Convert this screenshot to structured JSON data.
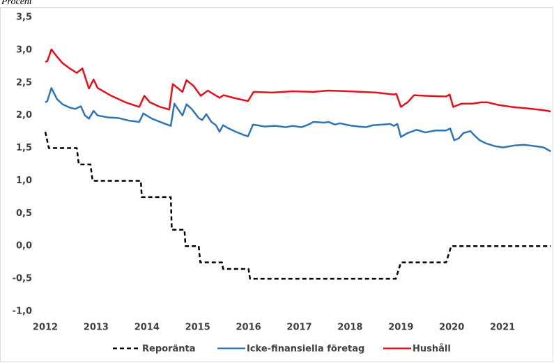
{
  "chart_data": {
    "type": "line",
    "title": "Procent",
    "xlim": [
      2012,
      2022
    ],
    "xticks": [
      2012,
      2013,
      2014,
      2015,
      2016,
      2017,
      2018,
      2019,
      2020,
      2021
    ],
    "ylim": [
      -1.0,
      3.5
    ],
    "yticks": [
      {
        "value": -1.0,
        "label": "-1,0"
      },
      {
        "value": -0.5,
        "label": "-0,5"
      },
      {
        "value": 0,
        "label": "0,0"
      },
      {
        "value": 0.5,
        "label": "0,5"
      },
      {
        "value": 1.0,
        "label": "1,0"
      },
      {
        "value": 1.5,
        "label": "1,5"
      },
      {
        "value": 2.0,
        "label": "2,0"
      },
      {
        "value": 2.5,
        "label": "2,5"
      },
      {
        "value": 3.0,
        "label": "3,0"
      },
      {
        "value": 3.5,
        "label": "3,5"
      }
    ],
    "grid": false,
    "legend": "bottom",
    "series": [
      {
        "name": "Reporänta",
        "color": "#000000",
        "dashed": true,
        "x": [
          2012,
          2012.07,
          2012.62,
          2012.66,
          2012.89,
          2012.93,
          2013.88,
          2013.9,
          2014.47,
          2014.49,
          2014.74,
          2014.76,
          2015.02,
          2015.05,
          2015.48,
          2015.5,
          2016.0,
          2016.03,
          2018.9,
          2019.0,
          2019.89,
          2019.99,
          2021.95
        ],
        "values": [
          1.75,
          1.5,
          1.5,
          1.25,
          1.25,
          1.0,
          1.0,
          0.75,
          0.75,
          0.25,
          0.25,
          0,
          0,
          -0.25,
          -0.25,
          -0.35,
          -0.35,
          -0.5,
          -0.5,
          -0.25,
          -0.25,
          0,
          0
        ]
      },
      {
        "name": "Icke-finansiella företag",
        "color": "#2e75b6",
        "x": [
          2012,
          2012.04,
          2012.12,
          2012.23,
          2012.34,
          2012.48,
          2012.59,
          2012.7,
          2012.78,
          2012.86,
          2012.95,
          2013.03,
          2013.23,
          2013.44,
          2013.65,
          2013.85,
          2013.93,
          2014.1,
          2014.33,
          2014.47,
          2014.54,
          2014.61,
          2014.7,
          2014.78,
          2014.88,
          2015.02,
          2015.09,
          2015.17,
          2015.27,
          2015.36,
          2015.43,
          2015.5,
          2015.61,
          2015.75,
          2015.91,
          2015.99,
          2016.09,
          2016.32,
          2016.53,
          2016.73,
          2016.87,
          2017.04,
          2017.15,
          2017.28,
          2017.49,
          2017.58,
          2017.7,
          2017.8,
          2017.97,
          2018.17,
          2018.31,
          2018.45,
          2018.65,
          2018.79,
          2018.86,
          2018.93,
          2019.0,
          2019.13,
          2019.31,
          2019.48,
          2019.68,
          2019.89,
          2019.97,
          2020.05,
          2020.14,
          2020.23,
          2020.37,
          2020.44,
          2020.55,
          2020.68,
          2020.85,
          2021.01,
          2021.23,
          2021.43,
          2021.64,
          2021.81,
          2021.95
        ],
        "values": [
          2.2,
          2.22,
          2.42,
          2.25,
          2.17,
          2.12,
          2.1,
          2.14,
          2.0,
          1.95,
          2.07,
          2.0,
          1.97,
          1.96,
          1.92,
          1.9,
          2.03,
          1.95,
          1.88,
          1.84,
          2.18,
          2.1,
          2.0,
          2.17,
          2.1,
          1.96,
          1.93,
          2.02,
          1.9,
          1.85,
          1.75,
          1.85,
          1.8,
          1.75,
          1.7,
          1.68,
          1.86,
          1.83,
          1.84,
          1.82,
          1.84,
          1.82,
          1.85,
          1.9,
          1.89,
          1.9,
          1.86,
          1.88,
          1.85,
          1.83,
          1.82,
          1.85,
          1.86,
          1.87,
          1.84,
          1.87,
          1.67,
          1.73,
          1.78,
          1.74,
          1.77,
          1.77,
          1.8,
          1.62,
          1.65,
          1.73,
          1.76,
          1.7,
          1.62,
          1.57,
          1.53,
          1.51,
          1.54,
          1.55,
          1.53,
          1.51,
          1.45
        ]
      },
      {
        "name": "Hushåll",
        "color": "#e3101b",
        "x": [
          2012,
          2012.04,
          2012.12,
          2012.23,
          2012.34,
          2012.48,
          2012.62,
          2012.73,
          2012.86,
          2012.95,
          2013.03,
          2013.3,
          2013.58,
          2013.85,
          2013.95,
          2014.06,
          2014.26,
          2014.44,
          2014.51,
          2014.7,
          2014.78,
          2014.92,
          2015.06,
          2015.2,
          2015.43,
          2015.51,
          2015.7,
          2015.99,
          2016.1,
          2016.46,
          2016.87,
          2017.28,
          2017.56,
          2017.97,
          2018.52,
          2018.86,
          2018.91,
          2019.0,
          2019.13,
          2019.26,
          2019.48,
          2019.89,
          2019.96,
          2020.03,
          2020.19,
          2020.41,
          2020.58,
          2020.71,
          2020.92,
          2021.19,
          2021.47,
          2021.81,
          2021.95
        ],
        "values": [
          2.82,
          2.83,
          3.01,
          2.9,
          2.8,
          2.72,
          2.65,
          2.72,
          2.41,
          2.55,
          2.42,
          2.3,
          2.2,
          2.13,
          2.3,
          2.2,
          2.13,
          2.09,
          2.48,
          2.36,
          2.54,
          2.45,
          2.3,
          2.38,
          2.27,
          2.31,
          2.27,
          2.22,
          2.36,
          2.35,
          2.37,
          2.36,
          2.38,
          2.37,
          2.35,
          2.32,
          2.33,
          2.13,
          2.2,
          2.31,
          2.3,
          2.29,
          2.32,
          2.13,
          2.18,
          2.18,
          2.2,
          2.2,
          2.16,
          2.13,
          2.11,
          2.08,
          2.06
        ]
      }
    ]
  }
}
